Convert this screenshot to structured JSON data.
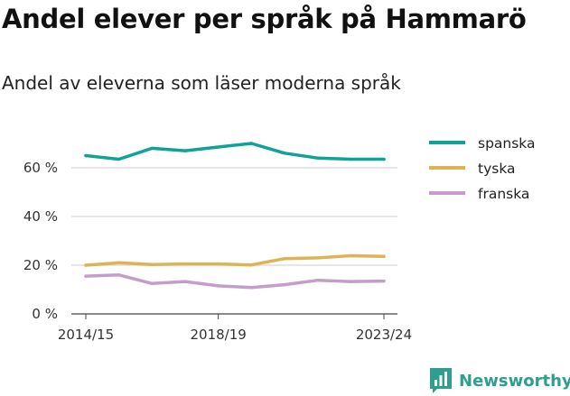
{
  "title": "Andel elever per språk på Hammarö",
  "subtitle": "Andel av eleverna som läser moderna språk",
  "brand": {
    "name": "Newsworthy",
    "color": "#2e9e8f",
    "icon": "bar-chart-flag-icon"
  },
  "chart_data": {
    "type": "line",
    "x": [
      "2014/15",
      "2015/16",
      "2016/17",
      "2017/18",
      "2018/19",
      "2019/20",
      "2020/21",
      "2021/22",
      "2022/23",
      "2023/24"
    ],
    "x_tick_labels": [
      "2014/15",
      "2018/19",
      "2023/24"
    ],
    "series": [
      {
        "name": "spanska",
        "color": "#0fa298",
        "values": [
          65,
          63.5,
          68,
          67,
          68.5,
          70,
          66,
          64,
          63.5,
          63.5
        ]
      },
      {
        "name": "tyska",
        "color": "#dfb256",
        "values": [
          20,
          21,
          20.3,
          20.5,
          20.5,
          20.1,
          22.7,
          23,
          23.9,
          23.6
        ]
      },
      {
        "name": "franska",
        "color": "#c49ec9",
        "values": [
          15.5,
          16,
          12.5,
          13.3,
          11.5,
          10.8,
          12,
          13.8,
          13.3,
          13.5
        ]
      }
    ],
    "y_ticks": [
      0,
      20,
      40,
      60
    ],
    "y_tick_labels": [
      "0 %",
      "20 %",
      "40 %",
      "60 %"
    ],
    "ylim": [
      0,
      72
    ],
    "grid": true,
    "legend_position": "right"
  }
}
